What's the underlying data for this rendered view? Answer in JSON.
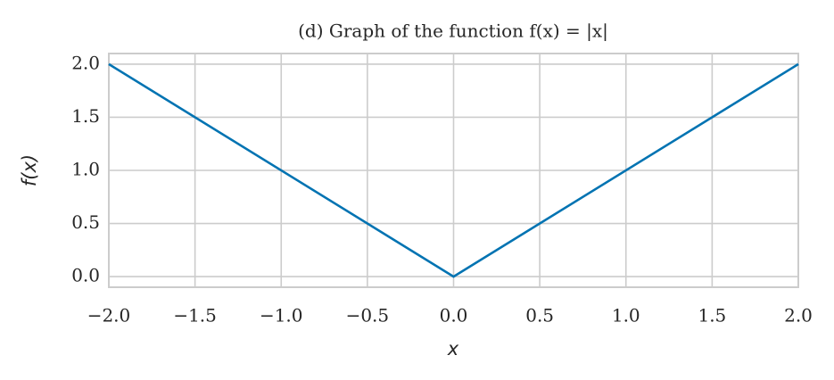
{
  "chart_data": {
    "type": "line",
    "title": "(d) Graph of the function f(x) = |x|",
    "x_label": "x",
    "y_label": "f(x)",
    "x": [
      -2,
      0,
      2
    ],
    "series": [
      {
        "name": "f(x) = |x|",
        "color": "#0173b2",
        "values": [
          2,
          0,
          2
        ]
      }
    ],
    "xlim": [
      -2,
      2
    ],
    "xticks": [
      {
        "value": -2,
        "label": "−2.0"
      },
      {
        "value": -1.5,
        "label": "−1.5"
      },
      {
        "value": -1,
        "label": "−1.0"
      },
      {
        "value": -0.5,
        "label": "−0.5"
      },
      {
        "value": 0,
        "label": "0.0"
      },
      0.5,
      {
        "value": 1,
        "label": "1.0"
      },
      1.5,
      {
        "value": 2,
        "label": "2.0"
      }
    ],
    "ylim": [
      -0.1,
      2.1
    ],
    "yticks": [
      {
        "value": 0,
        "label": "0.0"
      },
      0.5,
      {
        "value": 1,
        "label": "1.0"
      },
      1.5,
      {
        "value": 2,
        "label": "2.0"
      }
    ],
    "grid": true
  }
}
